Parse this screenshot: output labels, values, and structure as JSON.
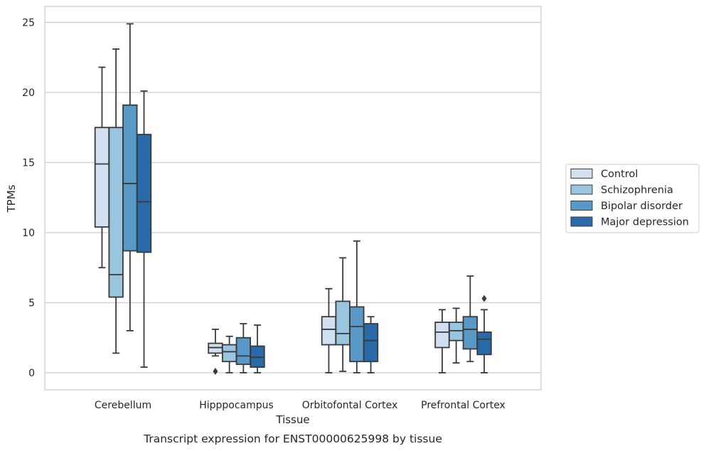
{
  "chart_data": {
    "type": "boxplot",
    "title": "",
    "caption": "Transcript expression for ENST00000625998 by tissue",
    "xlabel": "Tissue",
    "ylabel": "TPMs",
    "ylim": [
      -1.2,
      26.2
    ],
    "yticks": [
      0,
      5,
      10,
      15,
      20,
      25
    ],
    "grid": "horizontal",
    "legend_position": "right",
    "categories": [
      "Cerebellum",
      "Hipppocampus",
      "Orbitofontal Cortex",
      "Prefrontal Cortex"
    ],
    "series": [
      {
        "name": "Control",
        "color": "#d1e0f1",
        "boxes": [
          {
            "whisker_low": 7.5,
            "q1": 10.4,
            "median": 14.9,
            "q3": 17.5,
            "whisker_high": 21.8,
            "outliers": []
          },
          {
            "whisker_low": 1.2,
            "q1": 1.4,
            "median": 1.8,
            "q3": 2.1,
            "whisker_high": 3.1,
            "outliers": [
              0.1
            ]
          },
          {
            "whisker_low": 0.0,
            "q1": 2.0,
            "median": 3.1,
            "q3": 4.0,
            "whisker_high": 6.0,
            "outliers": []
          },
          {
            "whisker_low": 0.0,
            "q1": 1.8,
            "median": 2.9,
            "q3": 3.6,
            "whisker_high": 4.5,
            "outliers": []
          }
        ]
      },
      {
        "name": "Schizophrenia",
        "color": "#9ac5df",
        "boxes": [
          {
            "whisker_low": 1.4,
            "q1": 5.4,
            "median": 7.0,
            "q3": 17.5,
            "whisker_high": 23.1,
            "outliers": []
          },
          {
            "whisker_low": 0.0,
            "q1": 0.8,
            "median": 1.5,
            "q3": 2.0,
            "whisker_high": 2.6,
            "outliers": []
          },
          {
            "whisker_low": 0.1,
            "q1": 2.0,
            "median": 2.8,
            "q3": 5.1,
            "whisker_high": 8.2,
            "outliers": []
          },
          {
            "whisker_low": 0.7,
            "q1": 2.3,
            "median": 3.0,
            "q3": 3.6,
            "whisker_high": 4.6,
            "outliers": []
          }
        ]
      },
      {
        "name": "Bipolar disorder",
        "color": "#5899c8",
        "boxes": [
          {
            "whisker_low": 3.0,
            "q1": 8.7,
            "median": 13.5,
            "q3": 19.1,
            "whisker_high": 24.9,
            "outliers": []
          },
          {
            "whisker_low": 0.0,
            "q1": 0.6,
            "median": 1.2,
            "q3": 2.5,
            "whisker_high": 3.5,
            "outliers": []
          },
          {
            "whisker_low": 0.0,
            "q1": 0.8,
            "median": 3.3,
            "q3": 4.7,
            "whisker_high": 9.4,
            "outliers": []
          },
          {
            "whisker_low": 0.8,
            "q1": 1.7,
            "median": 3.1,
            "q3": 4.0,
            "whisker_high": 6.9,
            "outliers": []
          }
        ]
      },
      {
        "name": "Major depression",
        "color": "#2b6aa9",
        "boxes": [
          {
            "whisker_low": 0.4,
            "q1": 8.6,
            "median": 12.2,
            "q3": 17.0,
            "whisker_high": 20.1,
            "outliers": []
          },
          {
            "whisker_low": 0.0,
            "q1": 0.4,
            "median": 1.1,
            "q3": 1.9,
            "whisker_high": 3.4,
            "outliers": []
          },
          {
            "whisker_low": 0.0,
            "q1": 0.8,
            "median": 2.3,
            "q3": 3.5,
            "whisker_high": 4.0,
            "outliers": []
          },
          {
            "whisker_low": 0.0,
            "q1": 1.3,
            "median": 2.4,
            "q3": 2.9,
            "whisker_high": 4.5,
            "outliers": [
              5.3
            ]
          }
        ]
      }
    ]
  }
}
